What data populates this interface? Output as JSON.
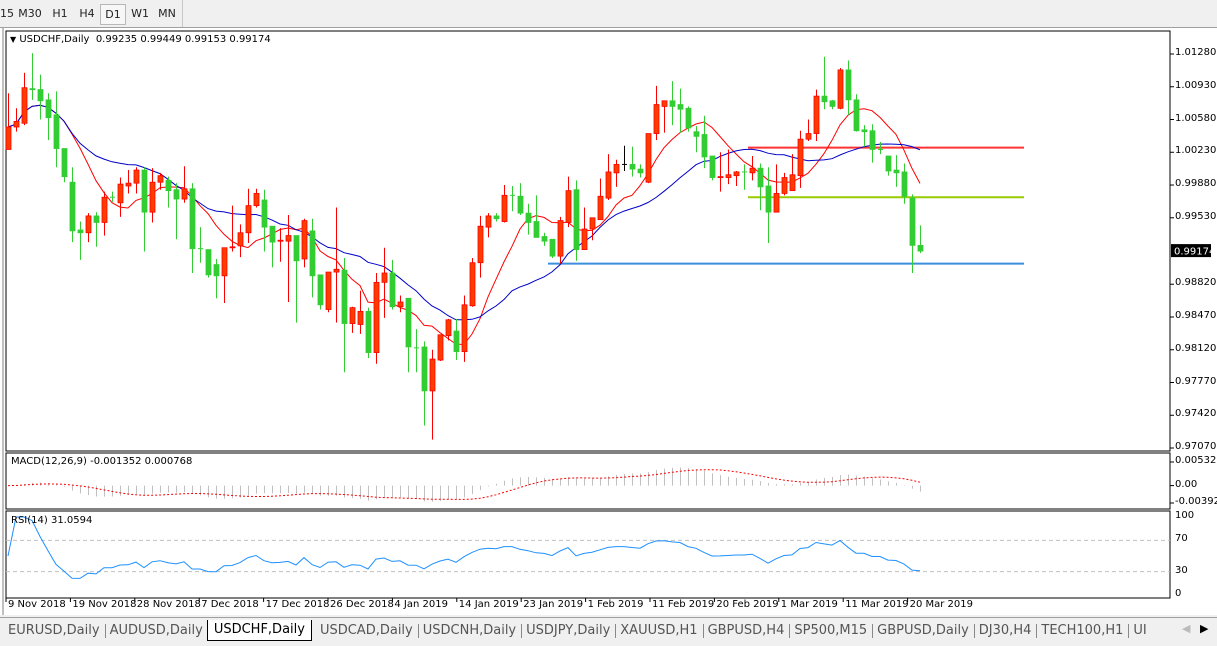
{
  "toolbar": {
    "timeframes": [
      {
        "label": "15",
        "active": false
      },
      {
        "label": "M30",
        "active": false
      },
      {
        "label": "H1",
        "active": false
      },
      {
        "label": "H4",
        "active": false
      },
      {
        "label": "D1",
        "active": true
      },
      {
        "label": "W1",
        "active": false
      },
      {
        "label": "MN",
        "active": false
      }
    ]
  },
  "chart": {
    "symbol_label": "USDCHF,Daily",
    "ohlc_label": "0.99235 0.99449 0.99153 0.99174",
    "current_price": "0.99174",
    "price_axis": [
      "1.01280",
      "1.00930",
      "1.00580",
      "1.00230",
      "0.99880",
      "0.99530",
      "0.98820",
      "0.98470",
      "0.98120",
      "0.97770",
      "0.97420",
      "0.97070"
    ],
    "date_axis": [
      "9 Nov 2018",
      "19 Nov 2018",
      "28 Nov 2018",
      "7 Dec 2018",
      "17 Dec 2018",
      "26 Dec 2018",
      "4 Jan 2019",
      "14 Jan 2019",
      "23 Jan 2019",
      "1 Feb 2019",
      "11 Feb 2019",
      "20 Feb 2019",
      "1 Mar 2019",
      "11 Mar 2019",
      "20 Mar 2019"
    ],
    "colors": {
      "bull": "#ff3c00",
      "bull_border": "#ff0000",
      "bear": "#32cd32",
      "doji": "#000000",
      "ma_fast": "#ff0000",
      "ma_slow": "#0000c8",
      "macd_hist": "#c0c0c0",
      "macd_signal": "#ff0000",
      "rsi": "#1e90ff"
    },
    "horizontal_lines": [
      {
        "price": 1.0028,
        "color": "#ff3333"
      },
      {
        "price": 0.9975,
        "color": "#99cc00"
      },
      {
        "price": 0.9904,
        "color": "#3b8fdc"
      }
    ],
    "candles": [
      [
        1.0026,
        1.0086,
        1.0026,
        1.005
      ],
      [
        1.005,
        1.007,
        1.0045,
        1.0056
      ],
      [
        1.0054,
        1.0108,
        1.0052,
        1.0092
      ],
      [
        1.0091,
        1.0129,
        1.0079,
        1.009
      ],
      [
        1.009,
        1.0106,
        1.0058,
        1.0078
      ],
      [
        1.0079,
        1.0086,
        1.0036,
        1.006
      ],
      [
        1.0063,
        1.0088,
        1.0007,
        1.0027
      ],
      [
        1.0027,
        1.0027,
        0.9991,
        0.9997
      ],
      [
        0.9991,
        1.0007,
        0.9927,
        0.9939
      ],
      [
        0.994,
        0.9949,
        0.9908,
        0.9937
      ],
      [
        0.9937,
        0.9958,
        0.9927,
        0.9955
      ],
      [
        0.9955,
        0.9959,
        0.9922,
        0.9948
      ],
      [
        0.9948,
        0.9981,
        0.9934,
        0.9975
      ],
      [
        0.9975,
        0.9981,
        0.997,
        0.9975
      ],
      [
        0.9969,
        0.9996,
        0.9954,
        0.9989
      ],
      [
        0.9987,
        1.0004,
        0.9979,
        0.999
      ],
      [
        0.999,
        1.0007,
        0.9979,
        1.0004
      ],
      [
        1.0004,
        1.0007,
        0.9917,
        0.9959
      ],
      [
        0.9959,
        1.0006,
        0.9948,
        0.9991
      ],
      [
        0.9991,
        1.0001,
        0.9983,
        0.9998
      ],
      [
        0.9993,
        0.9997,
        0.9964,
        0.9982
      ],
      [
        0.9983,
        0.999,
        0.993,
        0.9973
      ],
      [
        0.9973,
        1.0008,
        0.9969,
        0.9984
      ],
      [
        0.9984,
        0.999,
        0.9894,
        0.992
      ],
      [
        0.992,
        0.9943,
        0.9905,
        0.992
      ],
      [
        0.9919,
        0.9919,
        0.9889,
        0.9892
      ],
      [
        0.9903,
        0.9909,
        0.9867,
        0.9891
      ],
      [
        0.9891,
        0.9921,
        0.9862,
        0.9921
      ],
      [
        0.9921,
        0.9966,
        0.9917,
        0.9922
      ],
      [
        0.9923,
        0.9946,
        0.9911,
        0.9937
      ],
      [
        0.9937,
        0.9984,
        0.9926,
        0.9966
      ],
      [
        0.9966,
        0.9984,
        0.9964,
        0.9979
      ],
      [
        0.9972,
        0.9983,
        0.9917,
        0.9943
      ],
      [
        0.9944,
        0.9944,
        0.99,
        0.9927
      ],
      [
        0.9928,
        0.9942,
        0.9906,
        0.9929
      ],
      [
        0.9928,
        0.9956,
        0.9863,
        0.9934
      ],
      [
        0.9934,
        0.9934,
        0.9841,
        0.9907
      ],
      [
        0.9909,
        0.9952,
        0.99,
        0.995
      ],
      [
        0.9939,
        0.9952,
        0.9868,
        0.9891
      ],
      [
        0.9892,
        0.9892,
        0.9855,
        0.986
      ],
      [
        0.9855,
        0.9895,
        0.9852,
        0.9895
      ],
      [
        0.9895,
        0.9964,
        0.9841,
        0.9898
      ],
      [
        0.9897,
        0.991,
        0.9788,
        0.984
      ],
      [
        0.984,
        0.9858,
        0.983,
        0.9857
      ],
      [
        0.9839,
        0.9875,
        0.9829,
        0.9853
      ],
      [
        0.9853,
        0.9857,
        0.9803,
        0.9809
      ],
      [
        0.9809,
        0.9894,
        0.9797,
        0.9884
      ],
      [
        0.9884,
        0.9921,
        0.9846,
        0.9894
      ],
      [
        0.9894,
        0.9908,
        0.9855,
        0.9858
      ],
      [
        0.9858,
        0.987,
        0.9852,
        0.9863
      ],
      [
        0.9867,
        0.9867,
        0.9788,
        0.9815
      ],
      [
        0.9814,
        0.9834,
        0.9788,
        0.9814
      ],
      [
        0.9815,
        0.9821,
        0.9731,
        0.9768
      ],
      [
        0.9768,
        0.9812,
        0.9716,
        0.9802
      ],
      [
        0.9801,
        0.9828,
        0.98,
        0.9828
      ],
      [
        0.9827,
        0.9845,
        0.9822,
        0.9844
      ],
      [
        0.9832,
        0.9845,
        0.9801,
        0.981
      ],
      [
        0.981,
        0.987,
        0.9799,
        0.986
      ],
      [
        0.9859,
        0.991,
        0.9858,
        0.9905
      ],
      [
        0.9905,
        0.9955,
        0.9889,
        0.9944
      ],
      [
        0.9943,
        0.9958,
        0.9932,
        0.9955
      ],
      [
        0.9955,
        0.9958,
        0.9949,
        0.9952
      ],
      [
        0.9949,
        0.9988,
        0.9948,
        0.9977
      ],
      [
        0.9977,
        0.9987,
        0.996,
        0.9977
      ],
      [
        0.9976,
        0.999,
        0.9956,
        0.9958
      ],
      [
        0.9958,
        0.9968,
        0.9935,
        0.9948
      ],
      [
        0.9949,
        0.9977,
        0.9932,
        0.9932
      ],
      [
        0.9933,
        0.9937,
        0.9923,
        0.9928
      ],
      [
        0.993,
        0.993,
        0.991,
        0.9912
      ],
      [
        0.9912,
        0.9954,
        0.9904,
        0.995
      ],
      [
        0.9948,
        0.9997,
        0.9943,
        0.9982
      ],
      [
        0.9983,
        0.9993,
        0.9907,
        0.9919
      ],
      [
        0.9919,
        0.9964,
        0.9919,
        0.9941
      ],
      [
        0.9941,
        0.9953,
        0.9929,
        0.9953
      ],
      [
        0.9951,
        0.9995,
        0.9951,
        0.9976
      ],
      [
        0.9974,
        1.0021,
        0.9972,
        1.0002
      ],
      [
        1.0001,
        1.0015,
        0.9986,
        1.001
      ],
      [
        1.001,
        1.003,
        1.0003,
        1.001
      ],
      [
        1.001,
        1.0029,
        0.9997,
        1.0005
      ],
      [
        1.0005,
        1.001,
        0.9996,
        1.0001
      ],
      [
        0.9991,
        1.0043,
        0.999,
        1.0043
      ],
      [
        1.0043,
        1.0094,
        1.0036,
        1.0074
      ],
      [
        1.0072,
        1.0078,
        1.0044,
        1.0078
      ],
      [
        1.0078,
        1.0099,
        1.0052,
        1.0072
      ],
      [
        1.0074,
        1.0091,
        1.0044,
        1.0069
      ],
      [
        1.007,
        1.0072,
        1.0045,
        1.0049
      ],
      [
        1.0045,
        1.0051,
        1.0023,
        1.004
      ],
      [
        1.0042,
        1.0062,
        1.0006,
        1.0018
      ],
      [
        1.0019,
        1.0019,
        0.9993,
        0.9996
      ],
      [
        0.9996,
        1.0023,
        0.9981,
        0.9997
      ],
      [
        0.9996,
        1.0026,
        0.9989,
        0.9999
      ],
      [
        0.9998,
        1.0003,
        0.9987,
        1.0002
      ],
      [
        1.0002,
        1.001,
        0.9983,
        1.0002
      ],
      [
        1.0001,
        1.0019,
        0.9993,
        1.0006
      ],
      [
        1.0006,
        1.0011,
        0.9961,
        0.9986
      ],
      [
        0.9987,
        1.0007,
        0.9926,
        0.9959
      ],
      [
        0.9959,
        1.001,
        0.9959,
        0.9979
      ],
      [
        0.9979,
        1.0001,
        0.9977,
        0.9996
      ],
      [
        0.9982,
        1.0021,
        0.9982,
        0.9999
      ],
      [
        0.9998,
        1.0046,
        0.9985,
        1.0037
      ],
      [
        1.0037,
        1.0058,
        1.0035,
        1.0043
      ],
      [
        1.0043,
        1.009,
        1.0035,
        1.0083
      ],
      [
        1.0083,
        1.0125,
        1.0069,
        1.0077
      ],
      [
        1.0078,
        1.0079,
        1.0069,
        1.0072
      ],
      [
        1.007,
        1.0113,
        1.0069,
        1.0111
      ],
      [
        1.0111,
        1.0121,
        1.0063,
        1.0079
      ],
      [
        1.0079,
        1.0085,
        1.0045,
        1.0046
      ],
      [
        1.0047,
        1.0052,
        1.0029,
        1.0045
      ],
      [
        1.0046,
        1.0053,
        1.0012,
        1.0026
      ],
      [
        1.0026,
        1.0034,
        1.0021,
        1.0026
      ],
      [
        1.0019,
        1.0019,
        0.9998,
        1.0003
      ],
      [
        1.0004,
        1.002,
        0.9986,
        1.0001
      ],
      [
        1.0002,
        1.0011,
        0.9968,
        0.9976
      ],
      [
        0.9974,
        0.9978,
        0.9894,
        0.99235
      ],
      [
        0.99235,
        0.99449,
        0.99153,
        0.99174
      ]
    ]
  },
  "macd": {
    "label": "MACD(12,26,9) -0.001352 0.000768",
    "axis": [
      "0.005321",
      "0.00",
      "-0.003922"
    ],
    "range": [
      -0.003922,
      0.005321
    ]
  },
  "rsi": {
    "label": "RSI(14) 31.0594",
    "axis": [
      "100",
      "70",
      "30",
      "0"
    ],
    "levels": [
      70,
      30
    ]
  },
  "tabs": [
    {
      "label": "EURUSD,Daily",
      "active": false
    },
    {
      "label": "AUDUSD,Daily",
      "active": false
    },
    {
      "label": "USDCHF,Daily",
      "active": true
    },
    {
      "label": "USDCAD,Daily",
      "active": false
    },
    {
      "label": "USDCNH,Daily",
      "active": false
    },
    {
      "label": "USDJPY,Daily",
      "active": false
    },
    {
      "label": "XAUUSD,H1",
      "active": false
    },
    {
      "label": "GBPUSD,H4",
      "active": false
    },
    {
      "label": "SP500,M15",
      "active": false
    },
    {
      "label": "GBPUSD,Daily",
      "active": false
    },
    {
      "label": "DJ30,H4",
      "active": false
    },
    {
      "label": "TECH100,H1",
      "active": false
    },
    {
      "label": "UI",
      "active": false
    }
  ]
}
